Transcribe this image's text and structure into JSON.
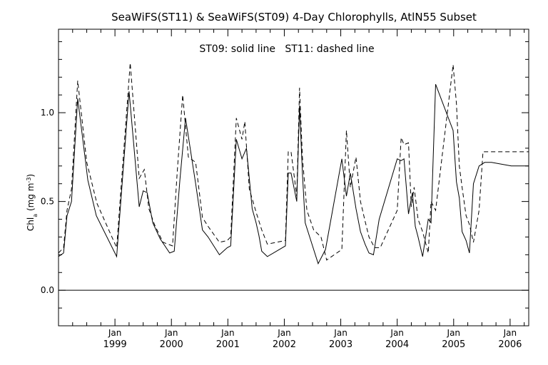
{
  "chart_data": {
    "type": "line",
    "title": "SeaWiFS(ST11) & SeaWiFS(ST09) 4-Day Chlorophylls, AtlN55 Subset",
    "annotation": "ST09: solid line   ST11: dashed line",
    "ylabel": {
      "main": "Chl",
      "sub": "a",
      "units_pre": " (mg m",
      "units_sup": "-3",
      "units_post": ")"
    },
    "xlim": [
      1998.0,
      2006.33
    ],
    "ylim": [
      -0.2,
      1.47
    ],
    "yticks": [
      0.0,
      0.5,
      1.0
    ],
    "yticks_labels": [
      "0.0",
      "0.5",
      "1.0"
    ],
    "xticks": [
      {
        "x": 1999.0,
        "month": "Jan",
        "year": "1999"
      },
      {
        "x": 2000.0,
        "month": "Jan",
        "year": "2000"
      },
      {
        "x": 2001.0,
        "month": "Jan",
        "year": "2001"
      },
      {
        "x": 2002.0,
        "month": "Jan",
        "year": "2002"
      },
      {
        "x": 2003.0,
        "month": "Jan",
        "year": "2003"
      },
      {
        "x": 2004.0,
        "month": "Jan",
        "year": "2004"
      },
      {
        "x": 2005.0,
        "month": "Jan",
        "year": "2005"
      },
      {
        "x": 2006.0,
        "month": "Jan",
        "year": "2006"
      }
    ],
    "reference_line": 0.0,
    "series": [
      {
        "style": "solid",
        "x": [
          1998.0,
          1998.09,
          1998.15,
          1998.23,
          1998.34,
          1998.52,
          1998.67,
          1999.03,
          1999.25,
          1999.43,
          1999.5,
          1999.57,
          1999.67,
          1999.8,
          1999.97,
          2000.05,
          2000.15,
          2000.25,
          2000.43,
          2000.55,
          2000.65,
          2000.85,
          2000.99,
          2001.05,
          2001.15,
          2001.25,
          2001.33,
          2001.43,
          2001.5,
          2001.55,
          2001.6,
          2001.7,
          2002.02,
          2002.07,
          2002.12,
          2002.22,
          2002.27,
          2002.32,
          2002.37,
          2002.45,
          2002.6,
          2002.73,
          2003.02,
          2003.1,
          2003.17,
          2003.27,
          2003.35,
          2003.43,
          2003.5,
          2003.58,
          2003.68,
          2004.0,
          2004.07,
          2004.12,
          2004.2,
          2004.27,
          2004.32,
          2004.37,
          2004.45,
          2004.55,
          2004.6,
          2004.68,
          2004.99,
          2005.05,
          2005.1,
          2005.15,
          2005.22,
          2005.28,
          2005.35,
          2005.45,
          2005.55,
          2005.67,
          2006.02,
          2006.08,
          2006.2,
          2006.3,
          2006.33
        ],
        "y": [
          0.19,
          0.21,
          0.42,
          0.5,
          1.08,
          0.62,
          0.42,
          0.19,
          1.12,
          0.47,
          0.56,
          0.55,
          0.38,
          0.29,
          0.21,
          0.22,
          0.62,
          0.97,
          0.6,
          0.34,
          0.3,
          0.2,
          0.24,
          0.25,
          0.85,
          0.74,
          0.8,
          0.46,
          0.38,
          0.31,
          0.22,
          0.19,
          0.25,
          0.66,
          0.66,
          0.5,
          1.04,
          0.66,
          0.38,
          0.3,
          0.15,
          0.23,
          0.74,
          0.53,
          0.66,
          0.46,
          0.33,
          0.26,
          0.21,
          0.2,
          0.4,
          0.74,
          0.73,
          0.74,
          0.43,
          0.55,
          0.36,
          0.3,
          0.19,
          0.4,
          0.38,
          1.16,
          0.9,
          0.61,
          0.52,
          0.33,
          0.28,
          0.21,
          0.6,
          0.7,
          0.72,
          0.72,
          0.7,
          0.7,
          0.7,
          0.7,
          0.7
        ]
      },
      {
        "style": "dashed",
        "x": [
          1998.0,
          1998.09,
          1998.15,
          1998.23,
          1998.34,
          1998.5,
          1998.68,
          1999.03,
          1999.27,
          1999.43,
          1999.52,
          1999.6,
          1999.7,
          1999.85,
          2000.02,
          2000.1,
          2000.2,
          2000.3,
          2000.43,
          2000.55,
          2000.65,
          2000.85,
          2000.99,
          2001.05,
          2001.15,
          2001.25,
          2001.3,
          2001.38,
          2001.5,
          2001.6,
          2001.7,
          2002.02,
          2002.07,
          2002.12,
          2002.22,
          2002.27,
          2002.32,
          2002.4,
          2002.52,
          2002.65,
          2002.75,
          2003.02,
          2003.1,
          2003.17,
          2003.27,
          2003.35,
          2003.43,
          2003.5,
          2003.6,
          2003.7,
          2004.0,
          2004.07,
          2004.12,
          2004.2,
          2004.25,
          2004.3,
          2004.37,
          2004.45,
          2004.55,
          2004.6,
          2004.68,
          2004.99,
          2005.05,
          2005.1,
          2005.15,
          2005.22,
          2005.28,
          2005.35,
          2005.45,
          2005.52,
          2005.62,
          2005.7,
          2006.02,
          2006.1,
          2006.2,
          2006.3,
          2006.33
        ],
        "y": [
          0.21,
          0.24,
          0.45,
          0.57,
          1.18,
          0.72,
          0.49,
          0.24,
          1.28,
          0.63,
          0.68,
          0.46,
          0.37,
          0.27,
          0.25,
          0.65,
          1.1,
          0.75,
          0.72,
          0.41,
          0.36,
          0.27,
          0.28,
          0.3,
          0.97,
          0.85,
          0.95,
          0.57,
          0.44,
          0.34,
          0.26,
          0.28,
          0.78,
          0.78,
          0.53,
          1.14,
          0.75,
          0.45,
          0.34,
          0.3,
          0.17,
          0.23,
          0.9,
          0.58,
          0.75,
          0.5,
          0.39,
          0.3,
          0.24,
          0.24,
          0.45,
          0.86,
          0.82,
          0.83,
          0.47,
          0.58,
          0.4,
          0.33,
          0.21,
          0.5,
          0.45,
          1.27,
          1.05,
          0.7,
          0.58,
          0.42,
          0.37,
          0.27,
          0.45,
          0.78,
          0.78,
          0.78,
          0.78,
          0.78,
          0.78,
          0.78,
          0.78
        ]
      }
    ]
  }
}
